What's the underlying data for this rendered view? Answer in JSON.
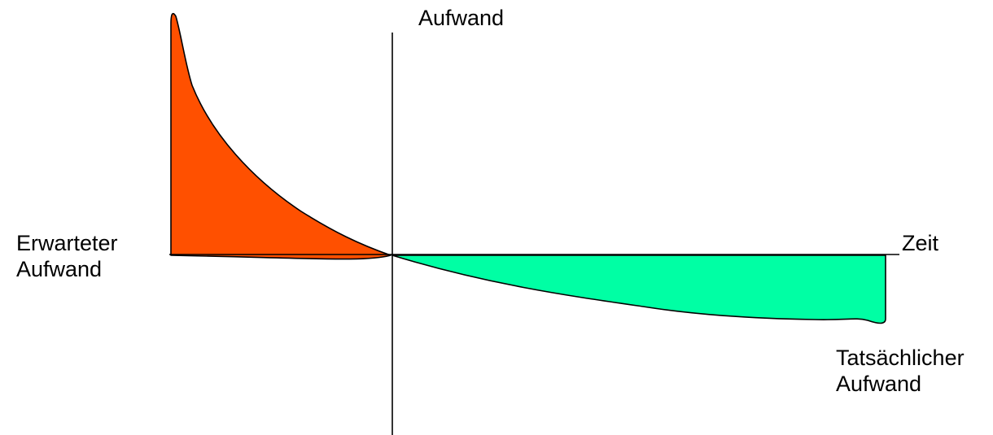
{
  "axes": {
    "y_label": "Aufwand",
    "x_label": "Zeit"
  },
  "areas": {
    "expected": {
      "label_line1": "Erwarteter",
      "label_line2": "Aufwand",
      "color": "#FF5000"
    },
    "actual": {
      "label_line1": "Tatsächlicher",
      "label_line2": "Aufwand",
      "color": "#00FFA4"
    }
  },
  "line_color": "#000000"
}
